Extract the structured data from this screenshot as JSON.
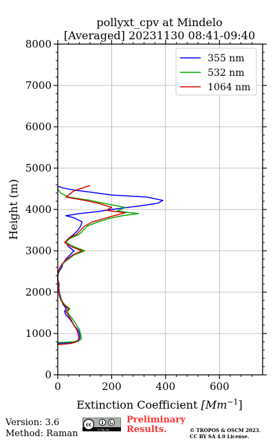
{
  "chart_data": {
    "type": "line",
    "title": "pollyxt_cpv at Mindelo",
    "subtitle": "[Averaged] 20231130 08:41-09:40",
    "xlabel_main": "Extinction Coefficient ",
    "xlabel_unit": "[Mm",
    "xlabel_exp": "−1",
    "xlabel_close": "]",
    "ylabel": "Height (m)",
    "xlim": [
      0,
      760
    ],
    "ylim": [
      0,
      8000
    ],
    "x_ticks": [
      0,
      200,
      400,
      600
    ],
    "y_ticks": [
      0,
      1000,
      2000,
      3000,
      4000,
      5000,
      6000,
      7000,
      8000
    ],
    "grid": true,
    "legend_position": "top-right",
    "series": [
      {
        "name": "355 nm",
        "color": "#0000ff",
        "points": [
          [
            0,
            760
          ],
          [
            60,
            780
          ],
          [
            78,
            820
          ],
          [
            82,
            900
          ],
          [
            80,
            1000
          ],
          [
            76,
            1080
          ],
          [
            60,
            1200
          ],
          [
            45,
            1350
          ],
          [
            30,
            1450
          ],
          [
            25,
            1530
          ],
          [
            32,
            1600
          ],
          [
            20,
            1700
          ],
          [
            15,
            1800
          ],
          [
            10,
            1900
          ],
          [
            6,
            2000
          ],
          [
            4,
            2100
          ],
          [
            5,
            2200
          ],
          [
            0,
            2300
          ],
          [
            0,
            2400
          ],
          [
            5,
            2500
          ],
          [
            15,
            2600
          ],
          [
            20,
            2700
          ],
          [
            30,
            2800
          ],
          [
            45,
            2900
          ],
          [
            60,
            3000
          ],
          [
            40,
            3100
          ],
          [
            30,
            3200
          ],
          [
            40,
            3300
          ],
          [
            60,
            3400
          ],
          [
            75,
            3500
          ],
          [
            85,
            3600
          ],
          [
            90,
            3700
          ],
          [
            60,
            3800
          ],
          [
            30,
            3850
          ],
          [
            80,
            3900
          ],
          [
            150,
            3950
          ],
          [
            200,
            4000
          ],
          [
            260,
            4050
          ],
          [
            320,
            4100
          ],
          [
            370,
            4150
          ],
          [
            390,
            4220
          ],
          [
            330,
            4300
          ],
          [
            200,
            4350
          ],
          [
            120,
            4420
          ],
          [
            60,
            4470
          ],
          [
            20,
            4520
          ],
          [
            0,
            4560
          ]
        ]
      },
      {
        "name": "532 nm",
        "color": "#00aa00",
        "points": [
          [
            0,
            780
          ],
          [
            60,
            800
          ],
          [
            85,
            850
          ],
          [
            88,
            900
          ],
          [
            84,
            1000
          ],
          [
            80,
            1100
          ],
          [
            70,
            1200
          ],
          [
            58,
            1330
          ],
          [
            42,
            1450
          ],
          [
            36,
            1530
          ],
          [
            45,
            1600
          ],
          [
            25,
            1700
          ],
          [
            15,
            1800
          ],
          [
            8,
            1900
          ],
          [
            5,
            2000
          ],
          [
            3,
            2100
          ],
          [
            4,
            2200
          ],
          [
            0,
            2300
          ],
          [
            0,
            2400
          ],
          [
            3,
            2500
          ],
          [
            10,
            2600
          ],
          [
            20,
            2700
          ],
          [
            40,
            2800
          ],
          [
            60,
            2900
          ],
          [
            100,
            3000
          ],
          [
            60,
            3100
          ],
          [
            30,
            3200
          ],
          [
            45,
            3300
          ],
          [
            80,
            3400
          ],
          [
            95,
            3500
          ],
          [
            110,
            3600
          ],
          [
            150,
            3700
          ],
          [
            190,
            3780
          ],
          [
            240,
            3850
          ],
          [
            300,
            3900
          ],
          [
            220,
            3960
          ],
          [
            250,
            4050
          ],
          [
            170,
            4150
          ],
          [
            120,
            4220
          ],
          [
            40,
            4300
          ],
          [
            10,
            4400
          ],
          [
            0,
            4500
          ]
        ]
      },
      {
        "name": "1064 nm",
        "color": "#e00000",
        "points": [
          [
            0,
            730
          ],
          [
            50,
            760
          ],
          [
            75,
            820
          ],
          [
            78,
            900
          ],
          [
            75,
            1000
          ],
          [
            70,
            1100
          ],
          [
            60,
            1200
          ],
          [
            50,
            1330
          ],
          [
            38,
            1450
          ],
          [
            30,
            1530
          ],
          [
            40,
            1600
          ],
          [
            22,
            1700
          ],
          [
            12,
            1800
          ],
          [
            6,
            1900
          ],
          [
            4,
            2000
          ],
          [
            2,
            2100
          ],
          [
            3,
            2200
          ],
          [
            0,
            2300
          ],
          [
            0,
            2400
          ],
          [
            2,
            2500
          ],
          [
            8,
            2600
          ],
          [
            18,
            2700
          ],
          [
            35,
            2800
          ],
          [
            55,
            2900
          ],
          [
            90,
            3000
          ],
          [
            50,
            3100
          ],
          [
            25,
            3200
          ],
          [
            40,
            3300
          ],
          [
            70,
            3400
          ],
          [
            85,
            3500
          ],
          [
            100,
            3600
          ],
          [
            130,
            3700
          ],
          [
            170,
            3780
          ],
          [
            210,
            3850
          ],
          [
            250,
            3920
          ],
          [
            180,
            3980
          ],
          [
            200,
            4050
          ],
          [
            150,
            4150
          ],
          [
            100,
            4220
          ],
          [
            30,
            4300
          ],
          [
            60,
            4450
          ],
          [
            120,
            4580
          ]
        ]
      }
    ]
  },
  "footer": {
    "version": "Version: 3.6",
    "method": "Method: Raman",
    "license_badge": "cc by sa",
    "preliminary_line1": "Preliminary",
    "preliminary_line2": "Results.",
    "copyright_line1": "© TROPOS & OSCM 2023.",
    "copyright_line2": "CC BY SA 4.0 License."
  }
}
